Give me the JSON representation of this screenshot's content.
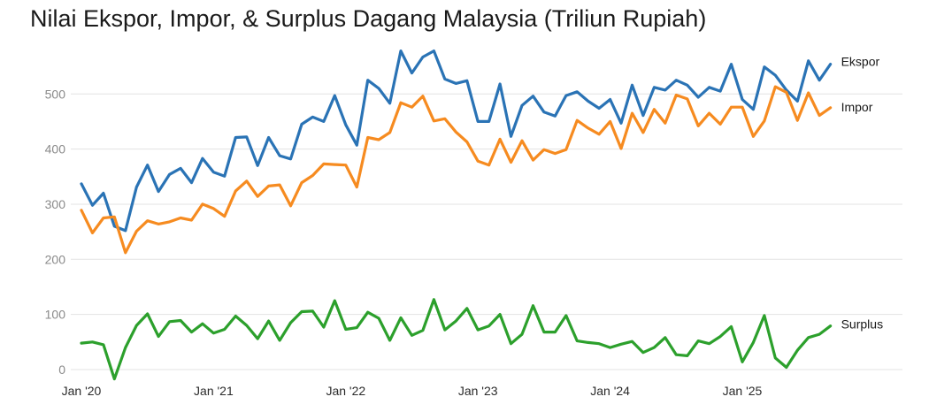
{
  "chart_data": {
    "type": "line",
    "title": "Nilai Ekspor, Impor, & Surplus Dagang Malaysia (Triliun Rupiah)",
    "xlabel": "",
    "ylabel": "",
    "ylim": [
      -20,
      580
    ],
    "y_ticks": [
      0,
      100,
      200,
      300,
      400,
      500
    ],
    "x_tick_labels": [
      "Jan '20",
      "Jan '21",
      "Jan '22",
      "Jan '23",
      "Jan '24",
      "Jan '25"
    ],
    "x_tick_month_index": [
      0,
      12,
      24,
      36,
      48,
      60
    ],
    "grid": true,
    "legend": "direct labels at right end of lines",
    "months": [
      "2020-01",
      "2020-02",
      "2020-03",
      "2020-04",
      "2020-05",
      "2020-06",
      "2020-07",
      "2020-08",
      "2020-09",
      "2020-10",
      "2020-11",
      "2020-12",
      "2021-01",
      "2021-02",
      "2021-03",
      "2021-04",
      "2021-05",
      "2021-06",
      "2021-07",
      "2021-08",
      "2021-09",
      "2021-10",
      "2021-11",
      "2021-12",
      "2022-01",
      "2022-02",
      "2022-03",
      "2022-04",
      "2022-05",
      "2022-06",
      "2022-07",
      "2022-08",
      "2022-09",
      "2022-10",
      "2022-11",
      "2022-12",
      "2023-01",
      "2023-02",
      "2023-03",
      "2023-04",
      "2023-05",
      "2023-06",
      "2023-07",
      "2023-08",
      "2023-09",
      "2023-10",
      "2023-11",
      "2023-12",
      "2024-01",
      "2024-02",
      "2024-03",
      "2024-04",
      "2024-05",
      "2024-06",
      "2024-07",
      "2024-08",
      "2024-09",
      "2024-10",
      "2024-11",
      "2024-12",
      "2025-01",
      "2025-02",
      "2025-03",
      "2025-04",
      "2025-05",
      "2025-06",
      "2025-07",
      "2025-08",
      "2025-09"
    ],
    "series": [
      {
        "name": "Ekspor",
        "color": "#2a73b5",
        "values": [
          337,
          298,
          320,
          260,
          252,
          331,
          371,
          323,
          354,
          365,
          339,
          383,
          358,
          351,
          421,
          422,
          370,
          421,
          388,
          382,
          445,
          458,
          450,
          497,
          444,
          407,
          525,
          510,
          483,
          578,
          538,
          567,
          578,
          527,
          519,
          524,
          450,
          450,
          518,
          423,
          479,
          496,
          467,
          460,
          497,
          504,
          487,
          474,
          490,
          447,
          516,
          461,
          512,
          507,
          525,
          516,
          494,
          512,
          505,
          554,
          490,
          472,
          549,
          534,
          507,
          487,
          560,
          525,
          554
        ]
      },
      {
        "name": "Impor",
        "color": "#f68b20",
        "values": [
          289,
          248,
          275,
          277,
          212,
          251,
          270,
          264,
          268,
          275,
          271,
          300,
          292,
          278,
          324,
          342,
          314,
          333,
          335,
          297,
          339,
          352,
          373,
          372,
          371,
          331,
          421,
          417,
          430,
          484,
          476,
          496,
          451,
          455,
          431,
          413,
          378,
          371,
          418,
          376,
          415,
          380,
          399,
          392,
          399,
          452,
          438,
          427,
          450,
          401,
          465,
          430,
          472,
          447,
          498,
          491,
          442,
          465,
          445,
          476,
          476,
          423,
          451,
          513,
          503,
          452,
          502,
          461,
          475
        ]
      },
      {
        "name": "Surplus",
        "color": "#2ca02c",
        "values": [
          48,
          50,
          45,
          -17,
          40,
          80,
          101,
          60,
          87,
          89,
          68,
          83,
          66,
          73,
          97,
          80,
          56,
          88,
          53,
          85,
          105,
          106,
          77,
          125,
          73,
          76,
          104,
          93,
          53,
          94,
          62,
          71,
          127,
          72,
          88,
          111,
          72,
          79,
          100,
          47,
          64,
          116,
          68,
          68,
          98,
          52,
          49,
          47,
          40,
          46,
          51,
          31,
          40,
          58,
          27,
          25,
          52,
          47,
          60,
          78,
          14,
          49,
          98,
          21,
          4,
          35,
          58,
          64,
          79
        ]
      }
    ]
  }
}
